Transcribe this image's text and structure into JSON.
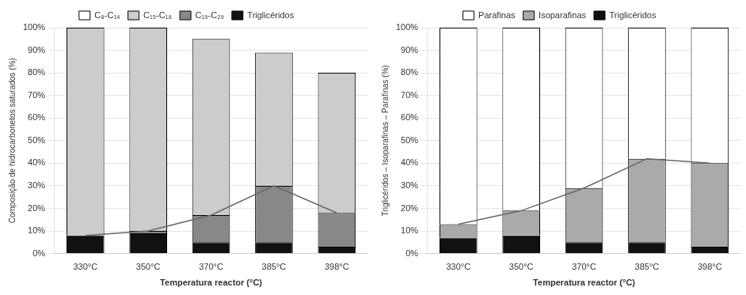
{
  "chart_data": [
    {
      "type": "bar",
      "stacked": true,
      "grid": true,
      "legend": "top",
      "categories": [
        "330°C",
        "350°C",
        "370°C",
        "385°C",
        "398°C"
      ],
      "xlabel": "Temperatura reactor (°C)",
      "ylabel": "Composição de hidrocarbonetos saturados (%)",
      "ylim": [
        0,
        100
      ],
      "yticks": [
        {
          "value": 0,
          "label": "0%"
        },
        {
          "value": 10,
          "label": "10%"
        },
        {
          "value": 20,
          "label": "20%"
        },
        {
          "value": 30,
          "label": "30%"
        },
        {
          "value": 40,
          "label": "40%"
        },
        {
          "value": 50,
          "label": "50%"
        },
        {
          "value": 60,
          "label": "60%"
        },
        {
          "value": 70,
          "label": "70%"
        },
        {
          "value": 80,
          "label": "80%"
        },
        {
          "value": 90,
          "label": "90%"
        },
        {
          "value": 100,
          "label": "100%"
        }
      ],
      "series": [
        {
          "name": "Triglicéridos",
          "color": "#111111",
          "values": [
            8,
            9,
            5,
            5,
            3
          ]
        },
        {
          "name": "C₁₉-C₂₉",
          "color": "#888888",
          "values": [
            0,
            1,
            12,
            25,
            15
          ]
        },
        {
          "name": "C₁₅-C₁₈",
          "color": "#cccccc",
          "values": [
            92,
            90,
            78,
            59,
            62
          ]
        },
        {
          "name": "C₈-C₁₄",
          "color": "#ffffff",
          "values": [
            0,
            0,
            0,
            0,
            0
          ]
        },
        {
          "type": "line",
          "color": "#666666",
          "values": [
            8,
            10,
            17,
            30,
            18
          ]
        }
      ]
    },
    {
      "type": "bar",
      "stacked": true,
      "grid": true,
      "legend": "top",
      "categories": [
        "330°C",
        "350°C",
        "370°C",
        "385°C",
        "398°C"
      ],
      "xlabel": "Temperatura reactor (°C)",
      "ylabel": "Triglicéridos – Isoparafinas – Parafinas (%)",
      "ylim": [
        0,
        100
      ],
      "yticks": [
        {
          "value": 0,
          "label": "0%"
        },
        {
          "value": 10,
          "label": "10%"
        },
        {
          "value": 20,
          "label": "20%"
        },
        {
          "value": 30,
          "label": "30%"
        },
        {
          "value": 40,
          "label": "40%"
        },
        {
          "value": 50,
          "label": "50%"
        },
        {
          "value": 60,
          "label": "60%"
        },
        {
          "value": 70,
          "label": "70%"
        },
        {
          "value": 80,
          "label": "80%"
        },
        {
          "value": 90,
          "label": "90%"
        },
        {
          "value": 100,
          "label": "100%"
        }
      ],
      "series": [
        {
          "name": "Triglicéridos",
          "color": "#111111",
          "values": [
            7,
            8,
            5,
            5,
            3
          ]
        },
        {
          "name": "Isoparafinas",
          "color": "#aaaaaa",
          "values": [
            6,
            11,
            24,
            37,
            37
          ]
        },
        {
          "name": "Parafinas",
          "color": "#ffffff",
          "values": [
            87,
            81,
            71,
            58,
            60
          ]
        },
        {
          "type": "line",
          "color": "#666666",
          "values": [
            13,
            19,
            29,
            42,
            40
          ]
        }
      ]
    }
  ]
}
